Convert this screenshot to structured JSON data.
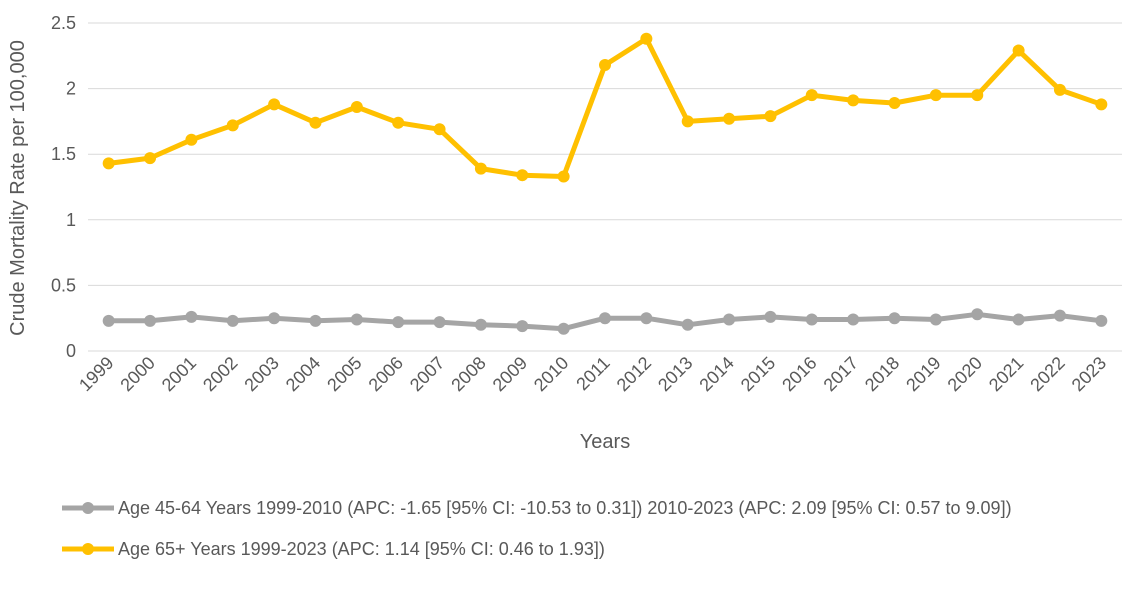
{
  "chart_data": {
    "type": "line",
    "xlabel": "Years",
    "ylabel": "Crude Mortality Rate per 100,000",
    "ylim": [
      0,
      2.5
    ],
    "yticks": [
      "0",
      "0.5",
      "1",
      "1.5",
      "2",
      "2.5"
    ],
    "grid": true,
    "legend_position": "bottom",
    "categories": [
      "1999",
      "2000",
      "2001",
      "2002",
      "2003",
      "2004",
      "2005",
      "2006",
      "2007",
      "2008",
      "2009",
      "2010",
      "2011",
      "2012",
      "2013",
      "2014",
      "2015",
      "2016",
      "2017",
      "2018",
      "2019",
      "2020",
      "2021",
      "2022",
      "2023"
    ],
    "series": [
      {
        "name": "Age 45-64 Years 1999-2010 (APC: -1.65 [95% CI: -10.53 to 0.31]) 2010-2023 (APC: 2.09 [95% CI: 0.57 to 9.09])",
        "color": "#a5a5a5",
        "values": [
          0.23,
          0.23,
          0.26,
          0.23,
          0.25,
          0.23,
          0.24,
          0.22,
          0.22,
          0.2,
          0.19,
          0.17,
          0.25,
          0.25,
          0.2,
          0.24,
          0.26,
          0.24,
          0.24,
          0.25,
          0.24,
          0.28,
          0.24,
          0.27,
          0.23
        ]
      },
      {
        "name": "Age 65+ Years 1999-2023 (APC: 1.14 [95% CI: 0.46 to 1.93])",
        "color": "#ffc000",
        "values": [
          1.43,
          1.47,
          1.61,
          1.72,
          1.88,
          1.74,
          1.86,
          1.74,
          1.69,
          1.39,
          1.34,
          1.33,
          2.18,
          2.38,
          1.75,
          1.77,
          1.79,
          1.95,
          1.91,
          1.89,
          1.95,
          1.95,
          2.29,
          1.99,
          1.88
        ]
      }
    ]
  }
}
